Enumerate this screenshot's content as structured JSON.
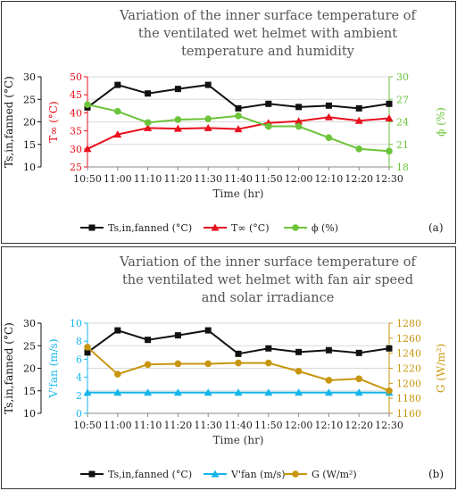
{
  "colors": {
    "black": "#111111",
    "red": "#e8111e",
    "green": "#6cc43a",
    "cyan": "#14b6ea",
    "gold": "#c8960e",
    "grid": "#d9d9d9"
  },
  "chart_data": [
    {
      "type": "line",
      "panel_label": "(a)",
      "title_lines": [
        "Variation of the inner surface temperature of",
        "the ventilated wet helmet with ambient",
        "temperature and humidity"
      ],
      "xlabel": "Time (hr)",
      "categories": [
        "10:50",
        "11:00",
        "11:10",
        "11:20",
        "11:30",
        "11:40",
        "11:50",
        "12:00",
        "12:10",
        "12:20",
        "12:30"
      ],
      "axes": [
        {
          "id": "ax1",
          "label": "Ts,in,fanned (°C)",
          "min": 10,
          "max": 30,
          "ticks": [
            "10",
            "15",
            "20",
            "25",
            "30"
          ],
          "color": "#111111"
        },
        {
          "id": "ax2",
          "label": "T∞ (°C)",
          "min": 25,
          "max": 50,
          "ticks": [
            "25",
            "30",
            "35",
            "40",
            "45",
            "50"
          ],
          "color": "#e8111e"
        },
        {
          "id": "ax3",
          "label": "ϕ (%)",
          "min": 18,
          "max": 30,
          "ticks": [
            "18",
            "21",
            "24",
            "27",
            "30"
          ],
          "color": "#6cc43a"
        }
      ],
      "series": [
        {
          "name": "Ts,in,fanned (°C)",
          "axis": "ax1",
          "color": "#111111",
          "marker": "square",
          "values": [
            23.2,
            28.2,
            26.3,
            27.3,
            28.2,
            23.0,
            24.0,
            23.3,
            23.6,
            23.0,
            24.0
          ]
        },
        {
          "name": "T∞ (°C)",
          "axis": "ax2",
          "color": "#e8111e",
          "marker": "triangle",
          "values": [
            30,
            34,
            35.8,
            35.6,
            35.8,
            35.5,
            37.2,
            37.7,
            38.8,
            37.8,
            38.5
          ]
        },
        {
          "name": "ϕ (%)",
          "axis": "ax3",
          "color": "#6cc43a",
          "marker": "circle",
          "values": [
            26.3,
            25.4,
            23.9,
            24.3,
            24.4,
            24.8,
            23.4,
            23.4,
            21.9,
            20.4,
            20.1
          ]
        }
      ],
      "legend": [
        "Ts,in,fanned (°C)",
        "T∞ (°C)",
        "ϕ (%)"
      ]
    },
    {
      "type": "line",
      "panel_label": "(b)",
      "title_lines": [
        "Variation of the inner surface temperature of",
        "the ventilated wet helmet with fan air speed",
        "and solar irradiance"
      ],
      "xlabel": "Time (hr)",
      "categories": [
        "10:50",
        "11:00",
        "11:10",
        "11:20",
        "11:30",
        "11:40",
        "11:50",
        "12:00",
        "12:10",
        "12:20",
        "12:30"
      ],
      "axes": [
        {
          "id": "ax1",
          "label": "Ts,in,fanned (°C)",
          "min": 10,
          "max": 30,
          "ticks": [
            "10",
            "15",
            "20",
            "25",
            "30"
          ],
          "color": "#111111"
        },
        {
          "id": "ax2",
          "label": "V'fan (m/s)",
          "min": 0,
          "max": 10,
          "ticks": [
            "0",
            "2",
            "4",
            "6",
            "8",
            "10"
          ],
          "color": "#14b6ea"
        },
        {
          "id": "ax3",
          "label": "G (W/m²)",
          "min": 1160,
          "max": 1280,
          "ticks": [
            "1160",
            "1180",
            "1200",
            "1220",
            "1240",
            "1260",
            "1280"
          ],
          "color": "#c8960e"
        }
      ],
      "series": [
        {
          "name": "Ts,in,fanned (°C)",
          "axis": "ax1",
          "color": "#111111",
          "marker": "square",
          "values": [
            23.5,
            28.4,
            26.3,
            27.3,
            28.4,
            23.2,
            24.4,
            23.6,
            24.0,
            23.4,
            24.4
          ]
        },
        {
          "name": "V'fan (m/s)",
          "axis": "ax2",
          "color": "#14b6ea",
          "marker": "triangle",
          "values": [
            2.3,
            2.3,
            2.3,
            2.3,
            2.3,
            2.3,
            2.3,
            2.3,
            2.3,
            2.3,
            2.3
          ]
        },
        {
          "name": "G (W/m²)",
          "axis": "ax3",
          "color": "#c8960e",
          "marker": "circle",
          "values": [
            1248,
            1212,
            1225,
            1226,
            1226,
            1227,
            1227,
            1216,
            1204,
            1206,
            1190
          ]
        }
      ],
      "legend": [
        "Ts,in,fanned (°C)",
        "V'fan (m/s)",
        "G (W/m²)"
      ]
    }
  ]
}
